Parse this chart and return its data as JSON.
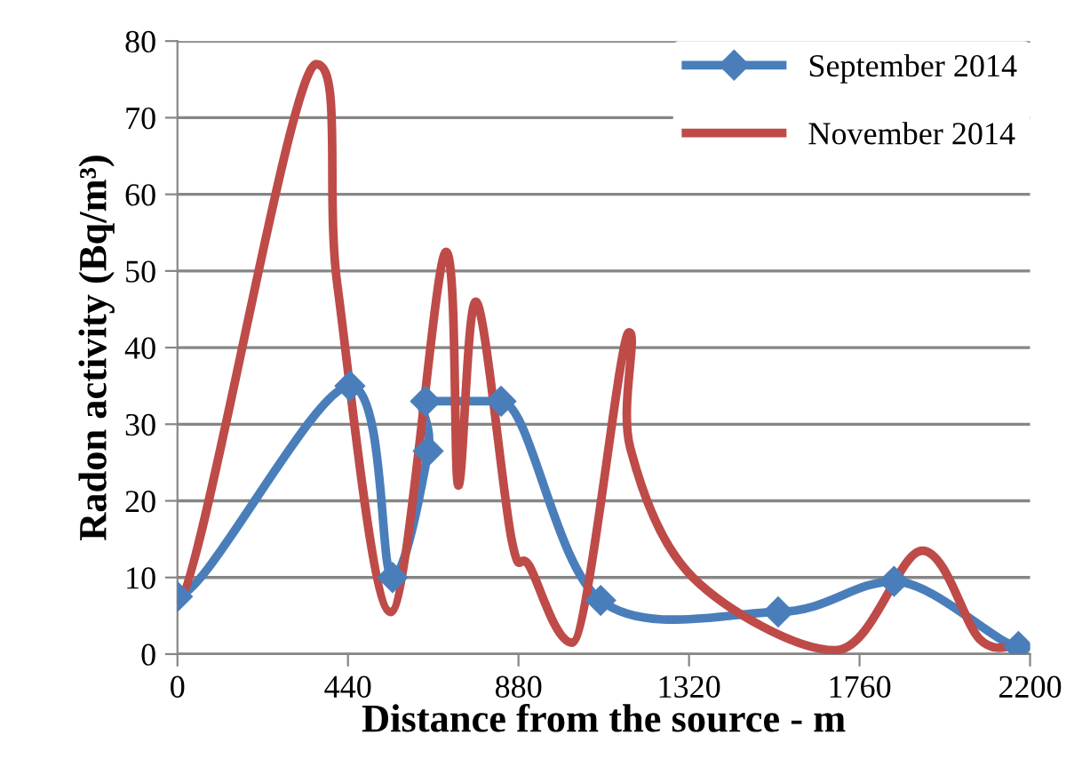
{
  "chart_data": {
    "type": "line",
    "xlabel": "Distance from the source - m",
    "ylabel": "Radon activity (Bq/m³)",
    "xlim": [
      0,
      2200
    ],
    "xticks": [
      0,
      440,
      880,
      1320,
      1760,
      2200
    ],
    "ylim": [
      0,
      80
    ],
    "yticks": [
      0,
      10,
      20,
      30,
      40,
      50,
      60,
      70,
      80
    ],
    "grid": "y",
    "legend": "top right",
    "line_style": "solid",
    "series": [
      {
        "name": "September 2014",
        "color": "#4a7ebb",
        "marker": "diamond",
        "x": [
          0,
          445,
          555,
          647,
          640,
          835,
          1092,
          1550,
          1849,
          2170
        ],
        "values": [
          7.5,
          35,
          10,
          26.5,
          33,
          33,
          7,
          5.5,
          9.5,
          1
        ]
      },
      {
        "name": "November 2014",
        "color": "#be4b48",
        "marker": "none",
        "x": [
          0,
          358,
          413,
          550,
          693,
          725,
          770,
          862,
          908,
          1018,
          1165,
          1168,
          1330,
          1697,
          1922,
          2069,
          2165
        ],
        "values": [
          7,
          77,
          48,
          5.5,
          52.5,
          22,
          46,
          15,
          11.5,
          1.5,
          42,
          27,
          10,
          0.5,
          13.5,
          2,
          1.2
        ]
      }
    ]
  }
}
